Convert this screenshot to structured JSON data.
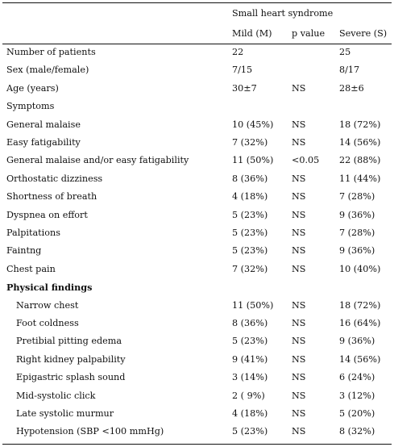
{
  "table": {
    "group_header": "Small heart syndrome",
    "columns": {
      "mild": "Mild (M)",
      "p": "p value",
      "severe": "Severe (S)"
    },
    "rows": [
      {
        "label": "Number of patients",
        "mild": "22",
        "p": "",
        "severe": "25"
      },
      {
        "label": "Sex (male/female)",
        "mild": "7/15",
        "p": "",
        "severe": "8/17"
      },
      {
        "label": "Age (years)",
        "mild": "30±7",
        "p": "NS",
        "severe": "28±6"
      },
      {
        "label": "Symptoms",
        "mild": "",
        "p": "",
        "severe": ""
      },
      {
        "label": "General malaise",
        "mild": "10 (45%)",
        "p": "NS",
        "severe": "18 (72%)"
      },
      {
        "label": "Easy fatigability",
        "mild": "7 (32%)",
        "p": "NS",
        "severe": "14 (56%)"
      },
      {
        "label": "General malaise and/or easy fatigability",
        "mild": "11 (50%)",
        "p": "<0.05",
        "severe": "22 (88%)"
      },
      {
        "label": "Orthostatic dizziness",
        "mild": "8 (36%)",
        "p": "NS",
        "severe": "11 (44%)"
      },
      {
        "label": "Shortness of breath",
        "mild": "4 (18%)",
        "p": "NS",
        "severe": "7 (28%)"
      },
      {
        "label": "Dyspnea on effort",
        "mild": "5 (23%)",
        "p": "NS",
        "severe": "9 (36%)"
      },
      {
        "label": "Palpitations",
        "mild": "5 (23%)",
        "p": "NS",
        "severe": "7 (28%)"
      },
      {
        "label": "Faintng",
        "mild": "5 (23%)",
        "p": "NS",
        "severe": "9 (36%)"
      },
      {
        "label": "Chest pain",
        "mild": "7 (32%)",
        "p": "NS",
        "severe": "10 (40%)"
      },
      {
        "label": "Physical findings",
        "mild": "",
        "p": "",
        "severe": ""
      },
      {
        "label": "Narrow chest",
        "mild": "11 (50%)",
        "p": "NS",
        "severe": "18 (72%)"
      },
      {
        "label": "Foot coldness",
        "mild": "8 (36%)",
        "p": "NS",
        "severe": "16 (64%)"
      },
      {
        "label": "Pretibial pitting edema",
        "mild": "5 (23%)",
        "p": "NS",
        "severe": "9 (36%)"
      },
      {
        "label": "Right kidney palpability",
        "mild": "9 (41%)",
        "p": "NS",
        "severe": "14 (56%)"
      },
      {
        "label": "Epigastric splash sound",
        "mild": "3 (14%)",
        "p": "NS",
        "severe": "6 (24%)"
      },
      {
        "label": "Mid-systolic click",
        "mild": "2 ( 9%)",
        "p": "NS",
        "severe": "3 (12%)"
      },
      {
        "label": "Late systolic murmur",
        "mild": "4 (18%)",
        "p": "NS",
        "severe": "5 (20%)"
      },
      {
        "label": "Hypotension (SBP <100 mmHg)",
        "mild": "5 (23%)",
        "p": "NS",
        "severe": "8 (32%)"
      }
    ]
  }
}
